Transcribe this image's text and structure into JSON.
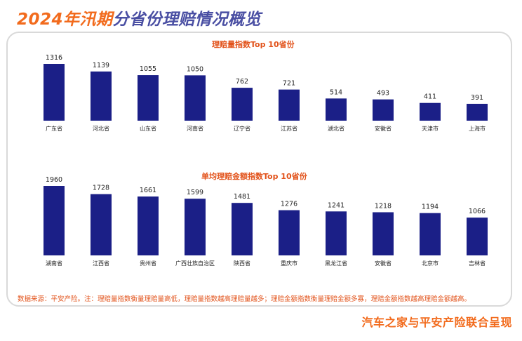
{
  "header": {
    "title_highlight": "2024年汛期",
    "title_rest": "分省份理赔情况概览"
  },
  "chart_data": [
    {
      "type": "bar",
      "title": "理赔量指数Top 10省份",
      "categories": [
        "广东省",
        "河北省",
        "山东省",
        "河南省",
        "辽宁省",
        "江苏省",
        "湖北省",
        "安徽省",
        "天津市",
        "上海市"
      ],
      "values": [
        1316,
        1139,
        1055,
        1050,
        762,
        721,
        514,
        493,
        411,
        391
      ],
      "ylim": [
        0,
        1400
      ],
      "grid": false,
      "color": "#1b1f87"
    },
    {
      "type": "bar",
      "title": "单均理赔金额指数Top 10省份",
      "categories": [
        "湖南省",
        "江西省",
        "贵州省",
        "广西壮族自治区",
        "陕西省",
        "重庆市",
        "黑龙江省",
        "安徽省",
        "北京市",
        "吉林省"
      ],
      "values": [
        1960,
        1728,
        1661,
        1599,
        1481,
        1276,
        1241,
        1218,
        1194,
        1066
      ],
      "ylim": [
        0,
        2050
      ],
      "grid": false,
      "color": "#1b1f87"
    }
  ],
  "footer": {
    "note": "数据来源：平安产险。注：理赔量指数衡量理赔量高低，理赔量指数越高理赔量越多；理赔金额指数衡量理赔金额多寡，理赔金额指数越高理赔金额越高。",
    "credit": "汽车之家与平安产险联合呈现"
  },
  "colors": {
    "accent": "#f26b1d",
    "title_dark": "#4a4fa3",
    "bar": "#1b1f87"
  }
}
